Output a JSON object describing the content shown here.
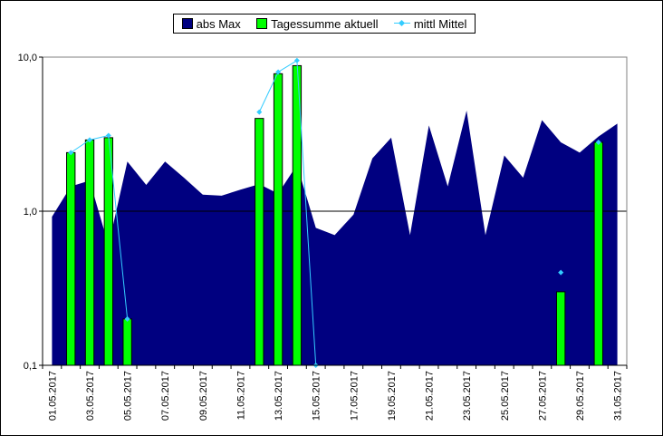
{
  "chart_data": {
    "type": "bar",
    "yscale": "log",
    "ylim": [
      0.1,
      10
    ],
    "yticks": [
      {
        "value": 0.1,
        "label": "0,1"
      },
      {
        "value": 1,
        "label": "1,0"
      },
      {
        "value": 10,
        "label": "10,0"
      }
    ],
    "x": [
      "01.05.2017",
      "02.05.2017",
      "03.05.2017",
      "04.05.2017",
      "05.05.2017",
      "06.05.2017",
      "07.05.2017",
      "08.05.2017",
      "09.05.2017",
      "10.05.2017",
      "11.05.2017",
      "12.05.2017",
      "13.05.2017",
      "14.05.2017",
      "15.05.2017",
      "16.05.2017",
      "17.05.2017",
      "18.05.2017",
      "19.05.2017",
      "20.05.2017",
      "21.05.2017",
      "22.05.2017",
      "23.05.2017",
      "24.05.2017",
      "25.05.2017",
      "26.05.2017",
      "27.05.2017",
      "28.05.2017",
      "29.05.2017",
      "30.05.2017",
      "31.05.2017"
    ],
    "xtick_labels": [
      "01.05.2017",
      "03.05.2017",
      "05.05.2017",
      "07.05.2017",
      "09.05.2017",
      "11.05.2017",
      "13.05.2017",
      "15.05.2017",
      "17.05.2017",
      "19.05.2017",
      "21.05.2017",
      "23.05.2017",
      "25.05.2017",
      "27.05.2017",
      "29.05.2017",
      "31.05.2017"
    ],
    "series": [
      {
        "name": "abs Max",
        "kind": "area",
        "color": "#000080",
        "values": [
          0.92,
          1.45,
          1.58,
          0.6,
          2.1,
          1.48,
          2.1,
          1.65,
          1.28,
          1.26,
          1.38,
          1.5,
          1.3,
          2.0,
          0.78,
          0.7,
          0.95,
          2.2,
          3.0,
          0.7,
          3.6,
          1.45,
          4.5,
          0.7,
          2.3,
          1.65,
          3.9,
          2.8,
          2.4,
          3.05,
          3.7
        ]
      },
      {
        "name": "Tagessumme aktuell",
        "kind": "bar",
        "color": "#00ff00",
        "values": [
          null,
          2.4,
          2.9,
          3.0,
          0.2,
          null,
          null,
          null,
          null,
          null,
          null,
          4.0,
          7.8,
          8.8,
          null,
          null,
          null,
          null,
          null,
          null,
          null,
          null,
          null,
          null,
          null,
          null,
          null,
          0.3,
          null,
          2.8,
          null
        ]
      },
      {
        "name": "mittl Mittel",
        "kind": "line",
        "color": "#33ccff",
        "values": [
          null,
          2.4,
          2.9,
          3.1,
          0.2,
          null,
          null,
          null,
          null,
          null,
          null,
          4.4,
          8.0,
          9.5,
          0.1,
          null,
          null,
          null,
          null,
          null,
          null,
          null,
          null,
          null,
          null,
          null,
          null,
          0.4,
          null,
          2.8,
          null
        ]
      }
    ],
    "legend": "top-center",
    "grid": false,
    "plot_background": "#ffffff"
  }
}
